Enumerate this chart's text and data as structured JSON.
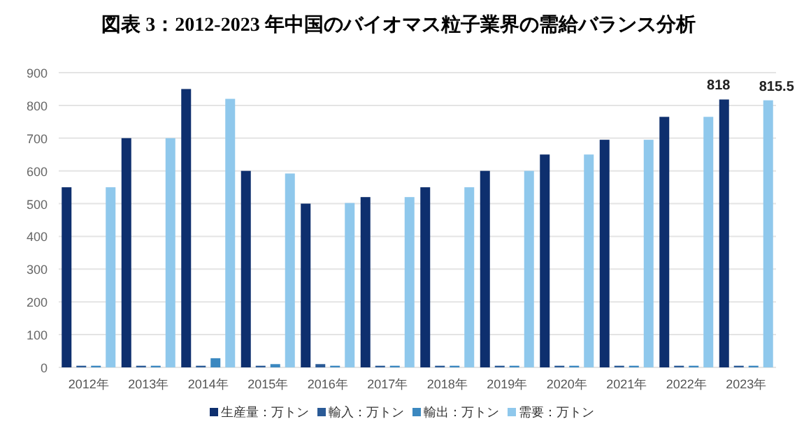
{
  "chart_data": {
    "type": "bar",
    "title": "図表 3：2012-2023 年中国のバイオマス粒子業界の需給バランス分析",
    "categories": [
      "2012年",
      "2013年",
      "2014年",
      "2015年",
      "2016年",
      "2017年",
      "2018年",
      "2019年",
      "2020年",
      "2021年",
      "2022年",
      "2023年"
    ],
    "series": [
      {
        "name": "生産量：万トン",
        "color": "#0e2f6e",
        "values": [
          550,
          700,
          850,
          600,
          500,
          520,
          550,
          600,
          650,
          695,
          765,
          818
        ],
        "value_labels": [
          null,
          null,
          null,
          null,
          null,
          null,
          null,
          null,
          null,
          null,
          null,
          "818"
        ]
      },
      {
        "name": "輸入：万トン",
        "color": "#2a5a96",
        "values": [
          5,
          5,
          5,
          5,
          10,
          5,
          5,
          5,
          5,
          5,
          5,
          5
        ]
      },
      {
        "name": "輸出：万トン",
        "color": "#3b88c0",
        "values": [
          5,
          5,
          28,
          10,
          5,
          5,
          5,
          5,
          5,
          5,
          5,
          5
        ]
      },
      {
        "name": "需要：万トン",
        "color": "#8fc8ec",
        "values": [
          550,
          700,
          820,
          592,
          502,
          520,
          550,
          600,
          650,
          695,
          765,
          815.5
        ],
        "value_labels": [
          null,
          null,
          null,
          null,
          null,
          null,
          null,
          null,
          null,
          null,
          null,
          "815.5"
        ]
      }
    ],
    "ylim": [
      0,
      900
    ],
    "yticks": [
      0,
      100,
      200,
      300,
      400,
      500,
      600,
      700,
      800,
      900
    ],
    "grid": "y",
    "legend": "bottom"
  }
}
